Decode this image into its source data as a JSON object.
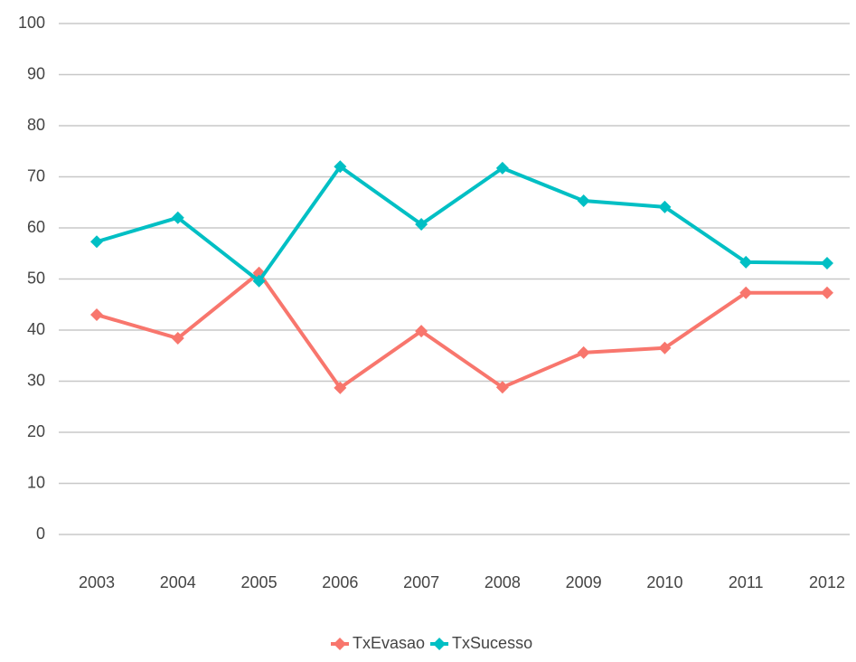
{
  "chart_data": {
    "type": "line",
    "categories": [
      "2003",
      "2004",
      "2005",
      "2006",
      "2007",
      "2008",
      "2009",
      "2010",
      "2011",
      "2012"
    ],
    "series": [
      {
        "name": "TxEvasao",
        "color": "#f8766d",
        "values": [
          43.0,
          38.4,
          51.2,
          28.7,
          39.8,
          28.8,
          35.6,
          36.5,
          47.3,
          47.3
        ]
      },
      {
        "name": "TxSucesso",
        "color": "#00bfc4",
        "values": [
          57.3,
          62.0,
          49.6,
          72.0,
          60.7,
          71.7,
          65.3,
          64.1,
          53.3,
          53.1
        ]
      }
    ],
    "ylim": [
      0,
      100
    ],
    "yticks": [
      0,
      10,
      20,
      30,
      40,
      50,
      60,
      70,
      80,
      90,
      100
    ],
    "grid": true,
    "legend": "bottom"
  }
}
